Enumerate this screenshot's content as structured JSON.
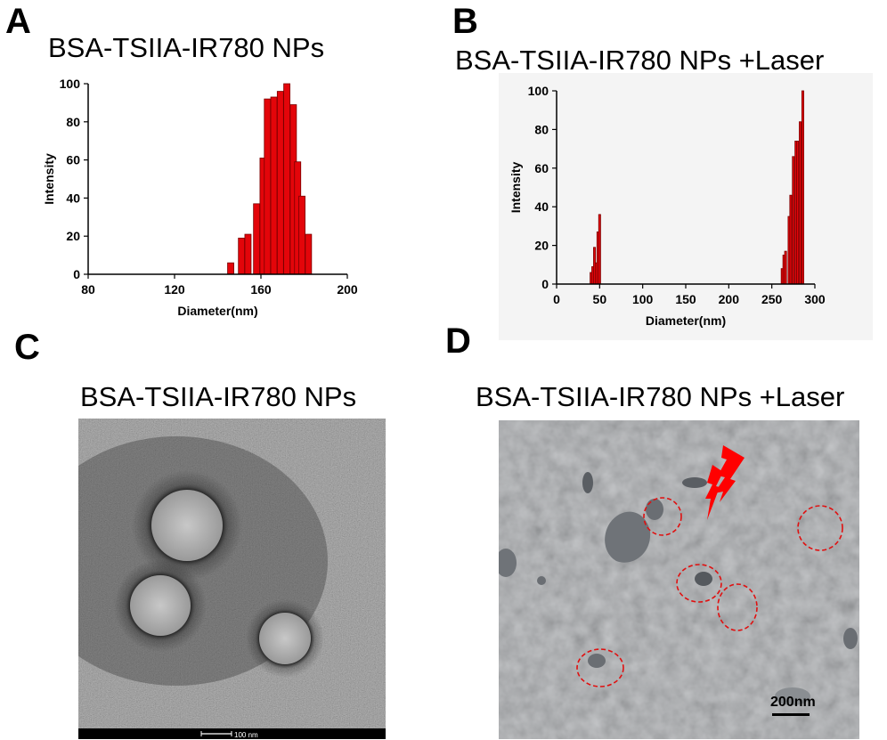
{
  "panels": {
    "a": {
      "letter": "A",
      "title": "BSA-TSIIA-IR780 NPs"
    },
    "b": {
      "letter": "B",
      "title": "BSA-TSIIA-IR780 NPs   +Laser"
    },
    "c": {
      "letter": "C",
      "title": "BSA-TSIIA-IR780 NPs",
      "scalebar_label": "100 nm"
    },
    "d": {
      "letter": "D",
      "title": "BSA-TSIIA-IR780 NPs +Laser",
      "scalebar_label": "200nm"
    }
  },
  "colors": {
    "bar_fill": "#e3050a",
    "bar_stroke": "#7a0000",
    "circle_marker": "#e01010",
    "bolt": "#ff0000"
  },
  "chart_data": [
    {
      "type": "bar",
      "title": "",
      "xlabel": "Diameter(nm)",
      "ylabel": "Intensity",
      "xlim": [
        80,
        200
      ],
      "ylim": [
        0,
        100
      ],
      "xticks": [
        80,
        120,
        160,
        200
      ],
      "yticks": [
        0,
        20,
        40,
        60,
        80,
        100
      ],
      "x": [
        146,
        151,
        154,
        158,
        161,
        163,
        166,
        169,
        172,
        175,
        177,
        179,
        182
      ],
      "values": [
        6,
        19,
        21,
        37,
        61,
        92,
        93,
        96,
        100,
        89,
        59,
        41,
        21
      ],
      "grid": false
    },
    {
      "type": "bar",
      "title": "",
      "xlabel": "Diameter(nm)",
      "ylabel": "Intensity",
      "xlim": [
        0,
        300
      ],
      "ylim": [
        0,
        100
      ],
      "xticks": [
        0,
        50,
        100,
        150,
        200,
        250,
        300
      ],
      "yticks": [
        0,
        20,
        40,
        60,
        80,
        100
      ],
      "x": [
        40,
        42,
        44,
        46,
        48,
        50,
        262,
        264,
        266,
        270,
        272,
        275,
        278,
        280,
        283,
        286
      ],
      "values": [
        6,
        9,
        19,
        11,
        27,
        36,
        8,
        15,
        17,
        35,
        46,
        66,
        74,
        74,
        84,
        100
      ],
      "grid": false
    }
  ]
}
